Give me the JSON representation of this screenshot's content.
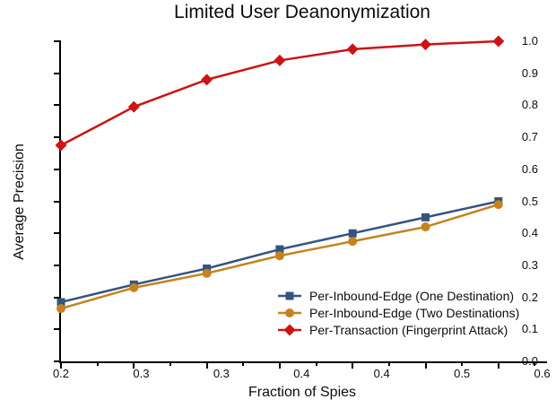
{
  "chart_data": {
    "type": "line",
    "title": "Limited User Deanonymization",
    "xlabel": "Fraction of Spies",
    "ylabel": "Average Precision",
    "x_tick_labels": [
      "0.2",
      "0.3",
      "0.3",
      "0.4",
      "0.4",
      "0.5",
      "0.6"
    ],
    "y_tick_labels": [
      "0.0",
      "0.1",
      "0.2",
      "0.3",
      "0.4",
      "0.5",
      "0.6",
      "0.7",
      "0.8",
      "0.9",
      "1.0"
    ],
    "ylim": [
      0.0,
      1.0
    ],
    "grid": false,
    "legend_position": "lower-right-inside",
    "axis_color": "#000000",
    "series": [
      {
        "name": "Per-Inbound-Edge (One Destination)",
        "marker": "square",
        "color": "#335480",
        "values": [
          0.185,
          0.24,
          0.29,
          0.35,
          0.4,
          0.45,
          0.5
        ]
      },
      {
        "name": "Per-Inbound-Edge (Two Destinations)",
        "marker": "circle",
        "color": "#C5821E",
        "values": [
          0.165,
          0.23,
          0.275,
          0.33,
          0.375,
          0.42,
          0.49
        ]
      },
      {
        "name": "Per-Transaction (Fingerprint Attack)",
        "marker": "diamond",
        "color": "#CC1414",
        "values": [
          0.675,
          0.795,
          0.88,
          0.94,
          0.975,
          0.99,
          1.0
        ]
      }
    ]
  }
}
